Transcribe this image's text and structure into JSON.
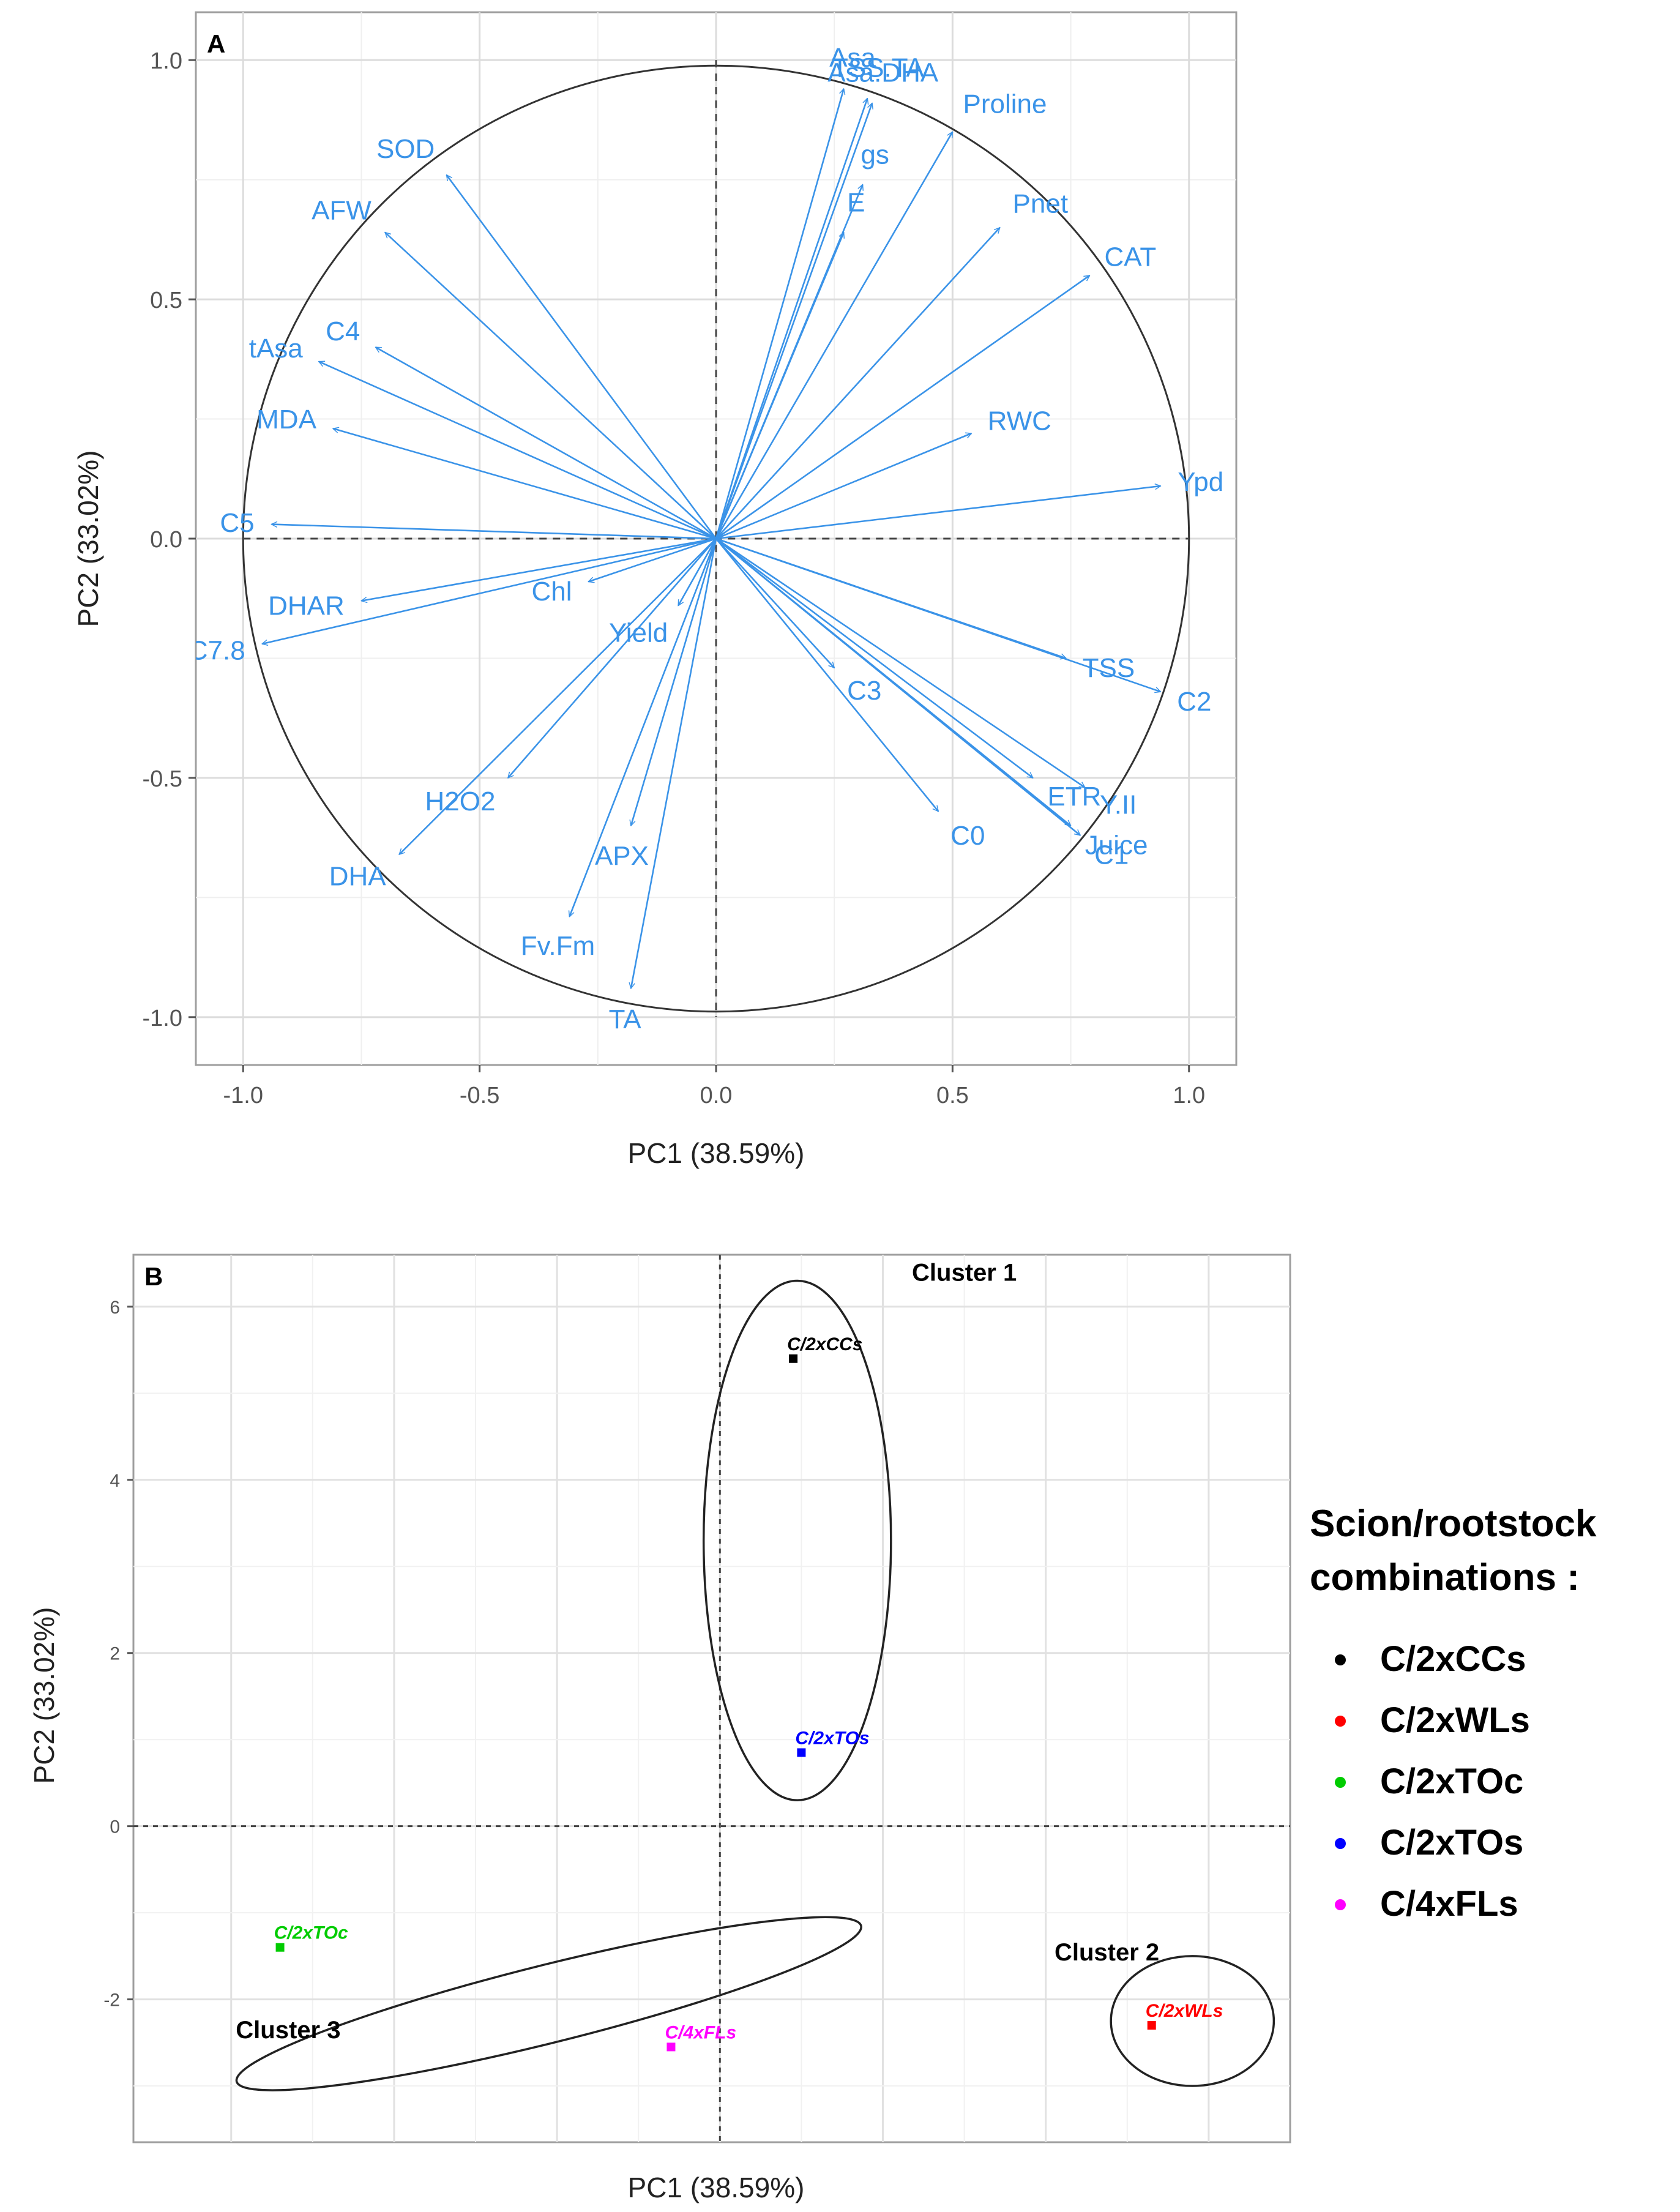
{
  "chart_data": [
    {
      "panel_id": "A",
      "type": "biplot-arrows",
      "title": "",
      "xlabel": "PC1 (38.59%)",
      "ylabel": "PC2 (33.02%)",
      "xlim": [
        -1.1,
        1.1
      ],
      "ylim": [
        -1.1,
        1.1
      ],
      "xticks": [
        -1.0,
        -0.5,
        0.0,
        0.5,
        1.0
      ],
      "yticks": [
        -1.0,
        -0.5,
        0.0,
        0.5,
        1.0
      ],
      "xtick_labels": [
        "-1.0",
        "-0.5",
        "0.0",
        "0.5",
        "1.0"
      ],
      "ytick_labels": [
        "-1.0",
        "-0.5",
        "0.0",
        "0.5",
        "1.0"
      ],
      "grid": true,
      "unit_circle": true,
      "arrow_color": "#3a93e8",
      "vectors": [
        {
          "name": "Asa",
          "x": 0.27,
          "y": 0.94
        },
        {
          "name": "TSS.TA",
          "x": 0.32,
          "y": 0.92
        },
        {
          "name": "Asa.DHA",
          "x": 0.33,
          "y": 0.91
        },
        {
          "name": "Proline",
          "x": 0.5,
          "y": 0.85
        },
        {
          "name": "gs",
          "x": 0.31,
          "y": 0.74
        },
        {
          "name": "E",
          "x": 0.27,
          "y": 0.64
        },
        {
          "name": "Pnet",
          "x": 0.6,
          "y": 0.65
        },
        {
          "name": "CAT",
          "x": 0.79,
          "y": 0.55
        },
        {
          "name": "RWC",
          "x": 0.54,
          "y": 0.22
        },
        {
          "name": "Ypd",
          "x": 0.94,
          "y": 0.11
        },
        {
          "name": "SOD",
          "x": -0.57,
          "y": 0.76
        },
        {
          "name": "AFW",
          "x": -0.7,
          "y": 0.64
        },
        {
          "name": "C4",
          "x": -0.72,
          "y": 0.4
        },
        {
          "name": "tAsa",
          "x": -0.84,
          "y": 0.37
        },
        {
          "name": "MDA",
          "x": -0.81,
          "y": 0.23
        },
        {
          "name": "C5",
          "x": -0.94,
          "y": 0.03
        },
        {
          "name": "DHAR",
          "x": -0.75,
          "y": -0.13
        },
        {
          "name": "Chl",
          "x": -0.27,
          "y": -0.09
        },
        {
          "name": "C7.8",
          "x": -0.96,
          "y": -0.22
        },
        {
          "name": "Yield",
          "x": -0.08,
          "y": -0.14
        },
        {
          "name": "H2O2",
          "x": -0.44,
          "y": -0.5
        },
        {
          "name": "DHA",
          "x": -0.67,
          "y": -0.66
        },
        {
          "name": "APX",
          "x": -0.18,
          "y": -0.6
        },
        {
          "name": "Fv.Fm",
          "x": -0.31,
          "y": -0.79
        },
        {
          "name": "TA",
          "x": -0.18,
          "y": -0.94
        },
        {
          "name": "C3",
          "x": 0.25,
          "y": -0.27
        },
        {
          "name": "C0",
          "x": 0.47,
          "y": -0.57
        },
        {
          "name": "TSS",
          "x": 0.74,
          "y": -0.25
        },
        {
          "name": "C2",
          "x": 0.94,
          "y": -0.32
        },
        {
          "name": "Y.II",
          "x": 0.78,
          "y": -0.52
        },
        {
          "name": "ETR",
          "x": 0.67,
          "y": -0.5
        },
        {
          "name": "Juice",
          "x": 0.75,
          "y": -0.6
        },
        {
          "name": "C1",
          "x": 0.77,
          "y": -0.62
        }
      ]
    },
    {
      "panel_id": "B",
      "type": "scatter",
      "title": "",
      "xlabel": "PC1 (38.59%)",
      "ylabel": "PC2 (33.02%)",
      "xlim": [
        -7.2,
        7.0
      ],
      "ylim": [
        -3.65,
        6.6
      ],
      "xticks": [],
      "yticks": [
        -2,
        0,
        2,
        4,
        6
      ],
      "ytick_labels": [
        "-2",
        "0",
        "2",
        "4",
        "6"
      ],
      "grid": true,
      "legend_title": "Scion/rootstock combinations :",
      "legend_position": "right",
      "series": [
        {
          "name": "C/2xCCs",
          "color": "#000000",
          "x": 0.9,
          "y": 5.4,
          "label": "C/2xCCs"
        },
        {
          "name": "C/2xWLs",
          "color": "#ff0000",
          "x": 5.3,
          "y": -2.3,
          "label": "C/2xWLs"
        },
        {
          "name": "C/2xTOc",
          "color": "#00cc00",
          "x": -5.4,
          "y": -1.4,
          "label": "C/2xTOc"
        },
        {
          "name": "C/2xTOs",
          "color": "#0000ff",
          "x": 1.0,
          "y": 0.85,
          "label": "C/2xTOs"
        },
        {
          "name": "C/4xFLs",
          "color": "#ff00ff",
          "x": -0.6,
          "y": -2.55,
          "label": "C/4xFLs"
        }
      ],
      "clusters": [
        {
          "name": "Cluster 1",
          "cx": 0.95,
          "cy": 3.3,
          "rx": 1.15,
          "ry": 3.0,
          "angle": 0,
          "label_x": 3.0,
          "label_y": 6.3
        },
        {
          "name": "Cluster 2",
          "cx": 5.8,
          "cy": -2.25,
          "rx": 1.0,
          "ry": 0.75,
          "angle": 0,
          "label_x": 4.75,
          "label_y": -1.55
        },
        {
          "name": "Cluster 3",
          "cx": -2.1,
          "cy": -2.05,
          "rx": 3.95,
          "ry": 0.45,
          "angle": -14,
          "label_x": -5.3,
          "label_y": -2.45
        }
      ]
    }
  ]
}
